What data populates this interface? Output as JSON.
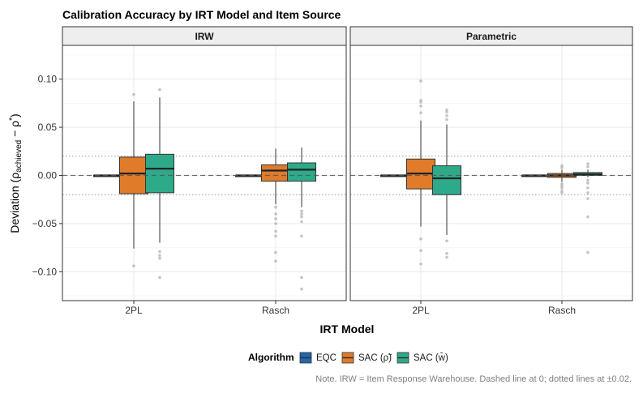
{
  "chart_data": {
    "type": "boxplot",
    "title": "Calibration Accuracy by IRT Model and Item Source",
    "facets": [
      "IRW",
      "Parametric"
    ],
    "categories": [
      "2PL",
      "Rasch"
    ],
    "xlabel": "IRT Model",
    "ylabel": {
      "main": "Deviation (ρ",
      "sub": "achieved",
      "rest": " − ρ",
      "sup": "*",
      "close": ")"
    },
    "ylim": [
      -0.13,
      0.135
    ],
    "yticks": [
      -0.1,
      -0.05,
      0.0,
      0.05,
      0.1
    ],
    "ytick_labels": [
      "−0.10",
      "−0.05",
      "0.00",
      "0.05",
      "0.10"
    ],
    "reference_lines": {
      "dashed": [
        0.0
      ],
      "dotted": [
        -0.02,
        0.02
      ]
    },
    "legend": {
      "title": "Algorithm",
      "items": [
        {
          "label": "EQC",
          "color": "#2166AC"
        },
        {
          "label": "SAC (ρ̃)",
          "color": "#E07B2A"
        },
        {
          "label": "SAC (w̄)",
          "color": "#2DAA8A"
        }
      ]
    },
    "boxes": [
      {
        "facet": "IRW",
        "category": "2PL",
        "algorithm": "EQC",
        "q1": 0.0,
        "median": 0.0,
        "q3": 0.0,
        "lo": -0.0005,
        "hi": 0.0005,
        "outliers": []
      },
      {
        "facet": "IRW",
        "category": "2PL",
        "algorithm": "SAC (ρ̃)",
        "q1": -0.019,
        "median": 0.002,
        "q3": 0.019,
        "lo": -0.076,
        "hi": 0.077,
        "outliers": [
          0.084,
          -0.094
        ]
      },
      {
        "facet": "IRW",
        "category": "2PL",
        "algorithm": "SAC (w̄)",
        "q1": -0.018,
        "median": 0.007,
        "q3": 0.022,
        "lo": -0.07,
        "hi": 0.081,
        "outliers": [
          0.089,
          -0.079,
          -0.083,
          -0.086,
          -0.106
        ]
      },
      {
        "facet": "IRW",
        "category": "Rasch",
        "algorithm": "EQC",
        "q1": 0.0,
        "median": 0.0,
        "q3": 0.0,
        "lo": -0.0005,
        "hi": 0.0005,
        "outliers": []
      },
      {
        "facet": "IRW",
        "category": "Rasch",
        "algorithm": "SAC (ρ̃)",
        "q1": -0.006,
        "median": 0.005,
        "q3": 0.011,
        "lo": -0.03,
        "hi": 0.028,
        "outliers": [
          -0.033,
          -0.04,
          -0.045,
          -0.05,
          -0.058,
          -0.063,
          -0.08,
          -0.089
        ]
      },
      {
        "facet": "IRW",
        "category": "Rasch",
        "algorithm": "SAC (w̄)",
        "q1": -0.006,
        "median": 0.006,
        "q3": 0.013,
        "lo": -0.033,
        "hi": 0.029,
        "outliers": [
          -0.037,
          -0.04,
          -0.043,
          -0.048,
          -0.063,
          -0.106,
          -0.118
        ]
      },
      {
        "facet": "Parametric",
        "category": "2PL",
        "algorithm": "EQC",
        "q1": 0.0,
        "median": 0.0,
        "q3": 0.0,
        "lo": -0.0005,
        "hi": 0.0005,
        "outliers": []
      },
      {
        "facet": "Parametric",
        "category": "2PL",
        "algorithm": "SAC (ρ̃)",
        "q1": -0.014,
        "median": 0.002,
        "q3": 0.017,
        "lo": -0.053,
        "hi": 0.057,
        "outliers": [
          0.065,
          0.072,
          0.076,
          0.078,
          0.098,
          -0.066,
          -0.078,
          -0.092
        ]
      },
      {
        "facet": "Parametric",
        "category": "2PL",
        "algorithm": "SAC (w̄)",
        "q1": -0.02,
        "median": -0.003,
        "q3": 0.01,
        "lo": -0.062,
        "hi": 0.053,
        "outliers": [
          0.058,
          0.062,
          0.066,
          0.068,
          -0.068,
          -0.081,
          -0.085
        ]
      },
      {
        "facet": "Parametric",
        "category": "Rasch",
        "algorithm": "EQC",
        "q1": 0.0,
        "median": 0.0,
        "q3": 0.0,
        "lo": -0.0005,
        "hi": 0.0005,
        "outliers": []
      },
      {
        "facet": "Parametric",
        "category": "Rasch",
        "algorithm": "SAC (ρ̃)",
        "q1": -0.002,
        "median": 0.0,
        "q3": 0.002,
        "lo": -0.007,
        "hi": 0.006,
        "outliers": [
          0.008,
          0.01,
          -0.009,
          -0.011,
          -0.013,
          -0.016,
          -0.018
        ]
      },
      {
        "facet": "Parametric",
        "category": "Rasch",
        "algorithm": "SAC (w̄)",
        "q1": 0.0,
        "median": 0.001,
        "q3": 0.003,
        "lo": -0.002,
        "hi": 0.006,
        "outliers": [
          0.009,
          0.012,
          -0.005,
          -0.008,
          -0.013,
          -0.018,
          -0.024,
          -0.043,
          -0.08
        ]
      }
    ],
    "note": "Note. IRW = Item Response Warehouse. Dashed line at 0; dotted lines at ±0.02."
  }
}
